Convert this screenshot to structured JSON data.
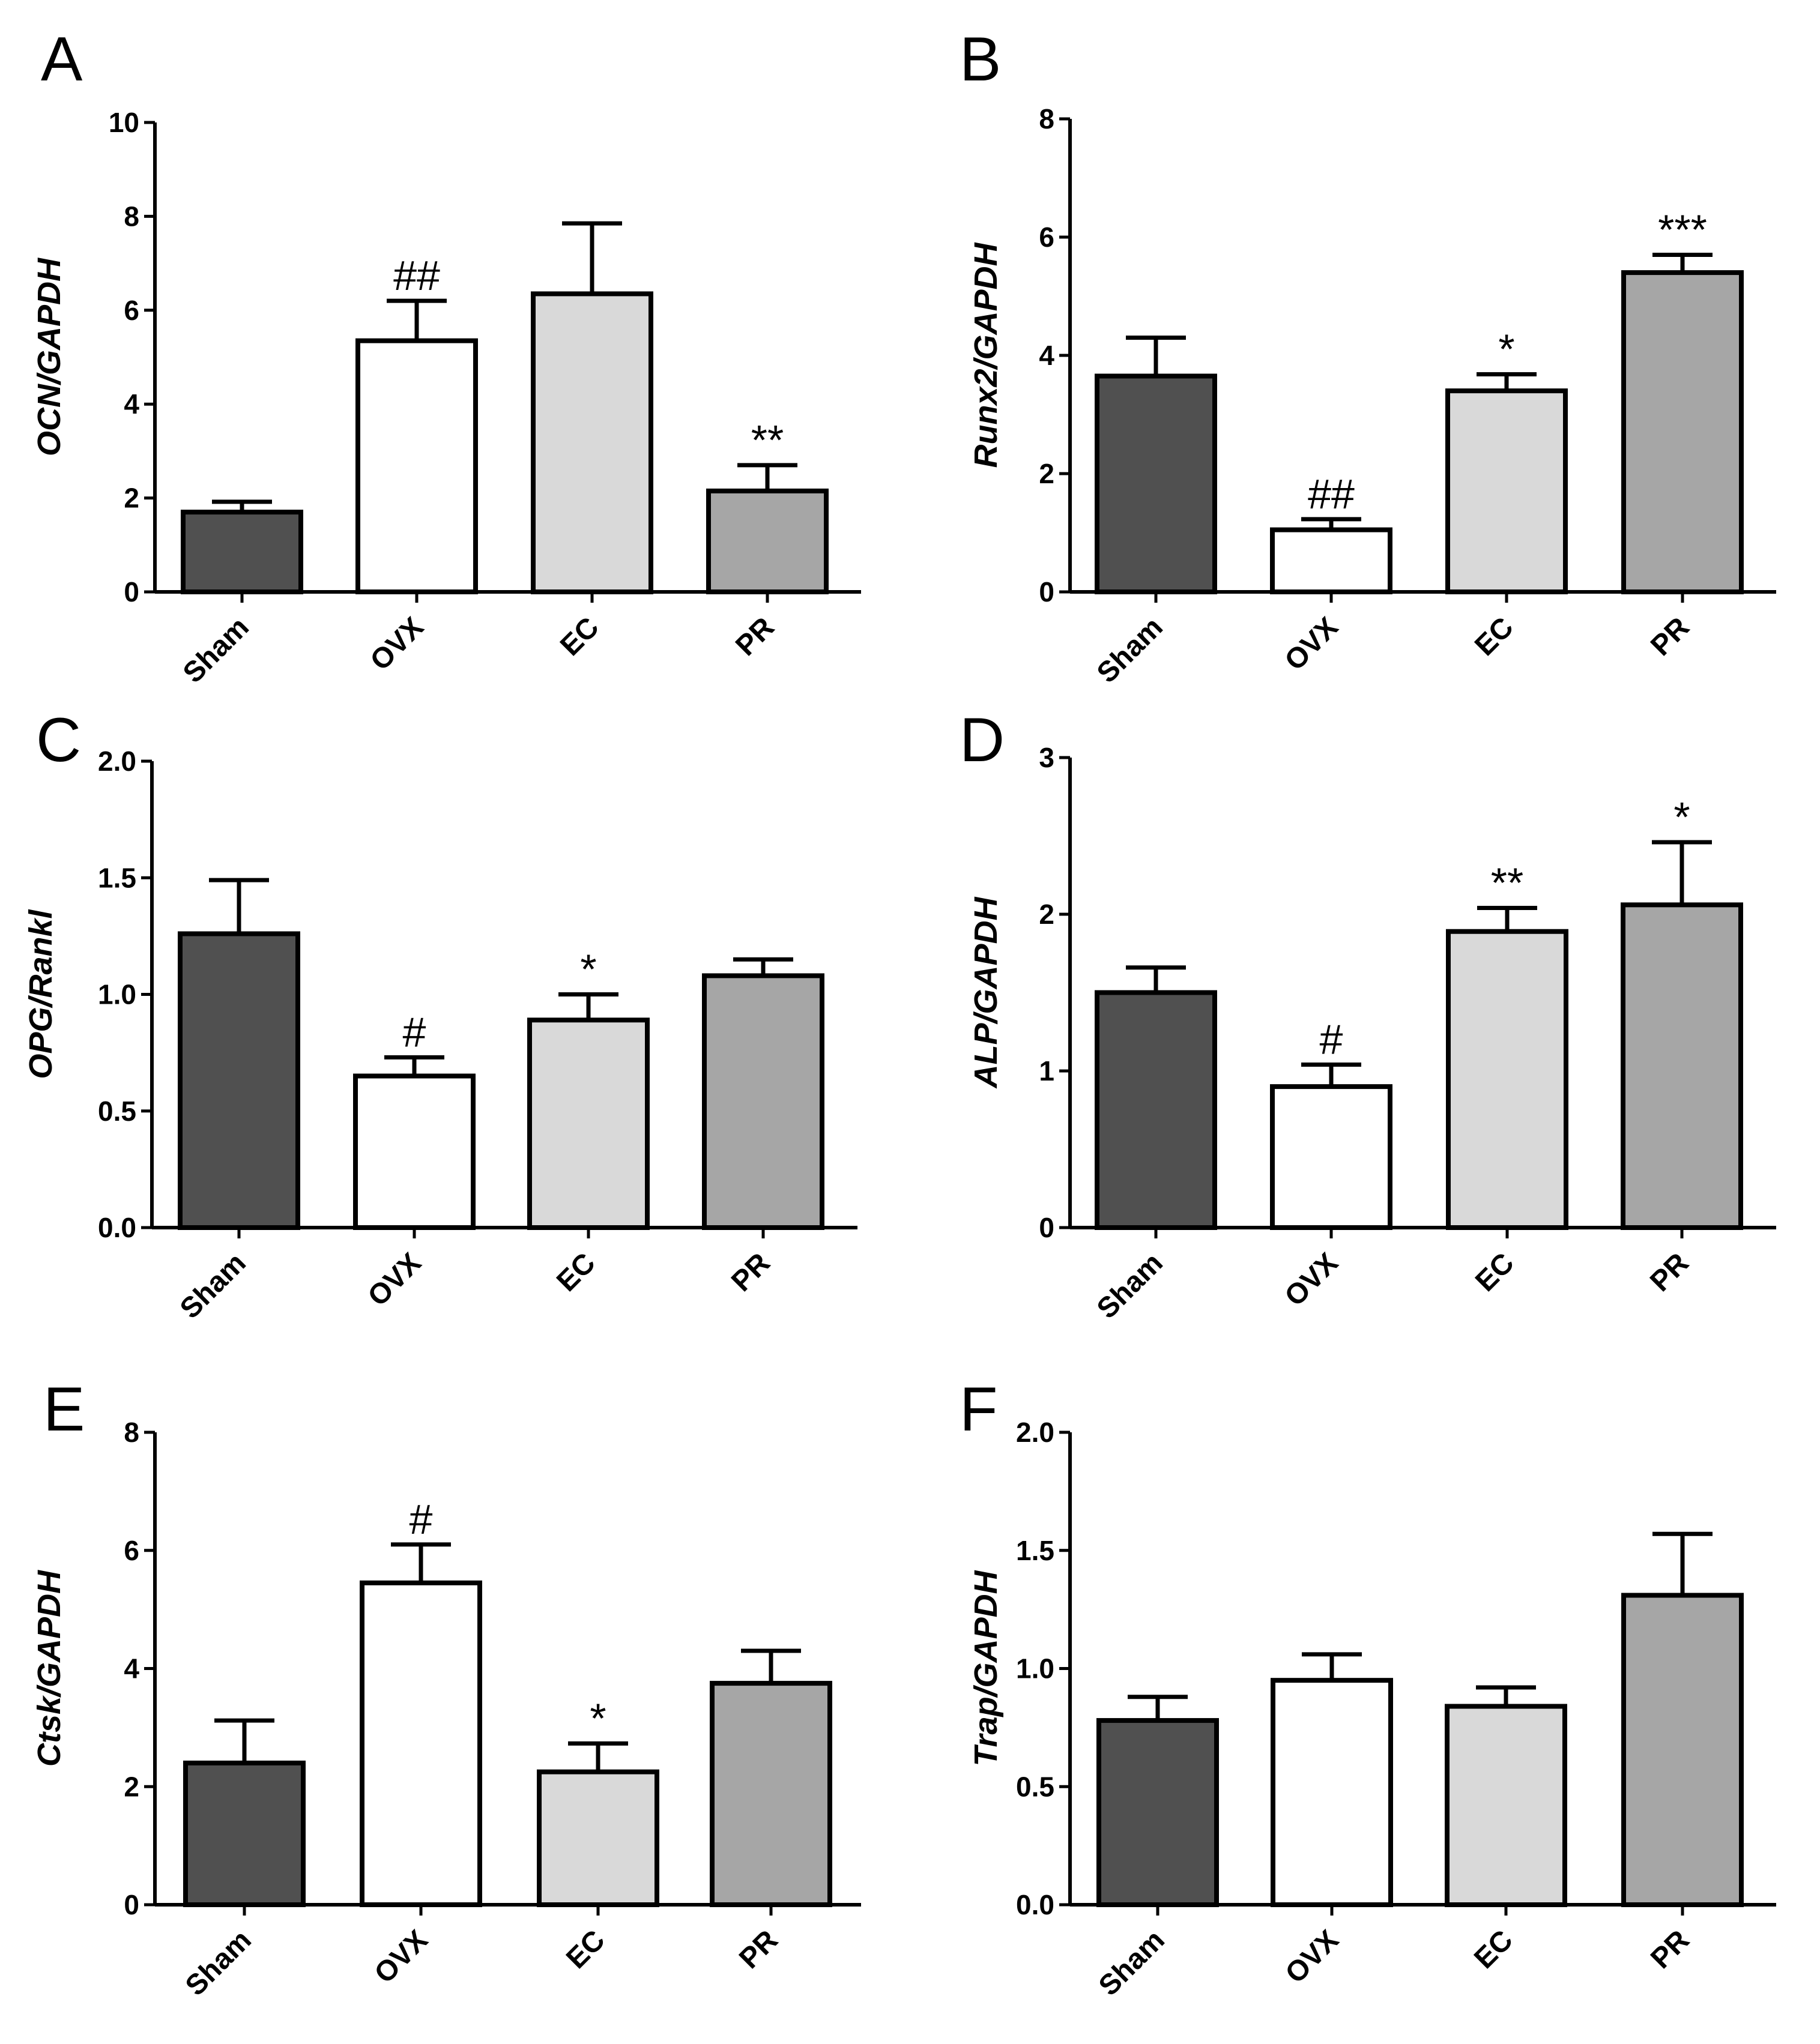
{
  "figure": {
    "description_free": true
  },
  "colors": {
    "Sham": "#505050",
    "OVX": "#ffffff",
    "EC": "#d9d9d9",
    "PR": "#a6a6a6",
    "axis": "#000000"
  },
  "chart_data": [
    {
      "panel": "A",
      "type": "bar",
      "categories": [
        "Sham",
        "OVX",
        "EC",
        "PR"
      ],
      "values": [
        1.7,
        5.35,
        6.35,
        2.15
      ],
      "errors": [
        0.22,
        0.85,
        1.5,
        0.55
      ],
      "significance": [
        "",
        "##",
        "",
        "**"
      ],
      "ylabel": "OCN/GAPDH",
      "ylim": [
        0,
        10
      ],
      "yticks": [
        0,
        2,
        4,
        6,
        8,
        10
      ],
      "ytick_labels": [
        "0",
        "2",
        "4",
        "6",
        "8",
        "10"
      ]
    },
    {
      "panel": "B",
      "type": "bar",
      "categories": [
        "Sham",
        "OVX",
        "EC",
        "PR"
      ],
      "values": [
        3.65,
        1.05,
        3.4,
        5.4
      ],
      "errors": [
        0.65,
        0.18,
        0.28,
        0.3
      ],
      "significance": [
        "",
        "##",
        "*",
        "***"
      ],
      "ylabel": "Runx2/GAPDH",
      "ylim": [
        0,
        8
      ],
      "yticks": [
        0,
        2,
        4,
        6,
        8
      ],
      "ytick_labels": [
        "0",
        "2",
        "4",
        "6",
        "8"
      ]
    },
    {
      "panel": "C",
      "type": "bar",
      "categories": [
        "Sham",
        "OVX",
        "EC",
        "PR"
      ],
      "values": [
        1.26,
        0.65,
        0.89,
        1.08
      ],
      "errors": [
        0.23,
        0.08,
        0.11,
        0.07
      ],
      "significance": [
        "",
        "#",
        "*",
        ""
      ],
      "ylabel": "OPG/Rankl",
      "ylim": [
        0,
        2.0
      ],
      "yticks": [
        0,
        0.5,
        1.0,
        1.5,
        2.0
      ],
      "ytick_labels": [
        "0.0",
        "0.5",
        "1.0",
        "1.5",
        "2.0"
      ]
    },
    {
      "panel": "D",
      "type": "bar",
      "categories": [
        "Sham",
        "OVX",
        "EC",
        "PR"
      ],
      "values": [
        1.5,
        0.9,
        1.89,
        2.06
      ],
      "errors": [
        0.16,
        0.14,
        0.15,
        0.4
      ],
      "significance": [
        "",
        "#",
        "**",
        "*"
      ],
      "ylabel": "ALP/GAPDH",
      "ylim": [
        0,
        3
      ],
      "yticks": [
        0,
        1,
        2,
        3
      ],
      "ytick_labels": [
        "0",
        "1",
        "2",
        "3"
      ]
    },
    {
      "panel": "E",
      "type": "bar",
      "categories": [
        "Sham",
        "OVX",
        "EC",
        "PR"
      ],
      "values": [
        2.4,
        5.45,
        2.25,
        3.75
      ],
      "errors": [
        0.72,
        0.65,
        0.48,
        0.55
      ],
      "significance": [
        "",
        "#",
        "*",
        ""
      ],
      "ylabel": "Ctsk/GAPDH",
      "ylim": [
        0,
        8
      ],
      "yticks": [
        0,
        2,
        4,
        6,
        8
      ],
      "ytick_labels": [
        "0",
        "2",
        "4",
        "6",
        "8"
      ]
    },
    {
      "panel": "F",
      "type": "bar",
      "categories": [
        "Sham",
        "OVX",
        "EC",
        "PR"
      ],
      "values": [
        0.78,
        0.95,
        0.84,
        1.31
      ],
      "errors": [
        0.1,
        0.11,
        0.08,
        0.26
      ],
      "significance": [
        "",
        "",
        "",
        ""
      ],
      "ylabel": "Trap/GAPDH",
      "ylim": [
        0,
        2.0
      ],
      "yticks": [
        0,
        0.5,
        1.0,
        1.5,
        2.0
      ],
      "ytick_labels": [
        "0.0",
        "0.5",
        "1.0",
        "1.5",
        "2.0"
      ]
    }
  ]
}
